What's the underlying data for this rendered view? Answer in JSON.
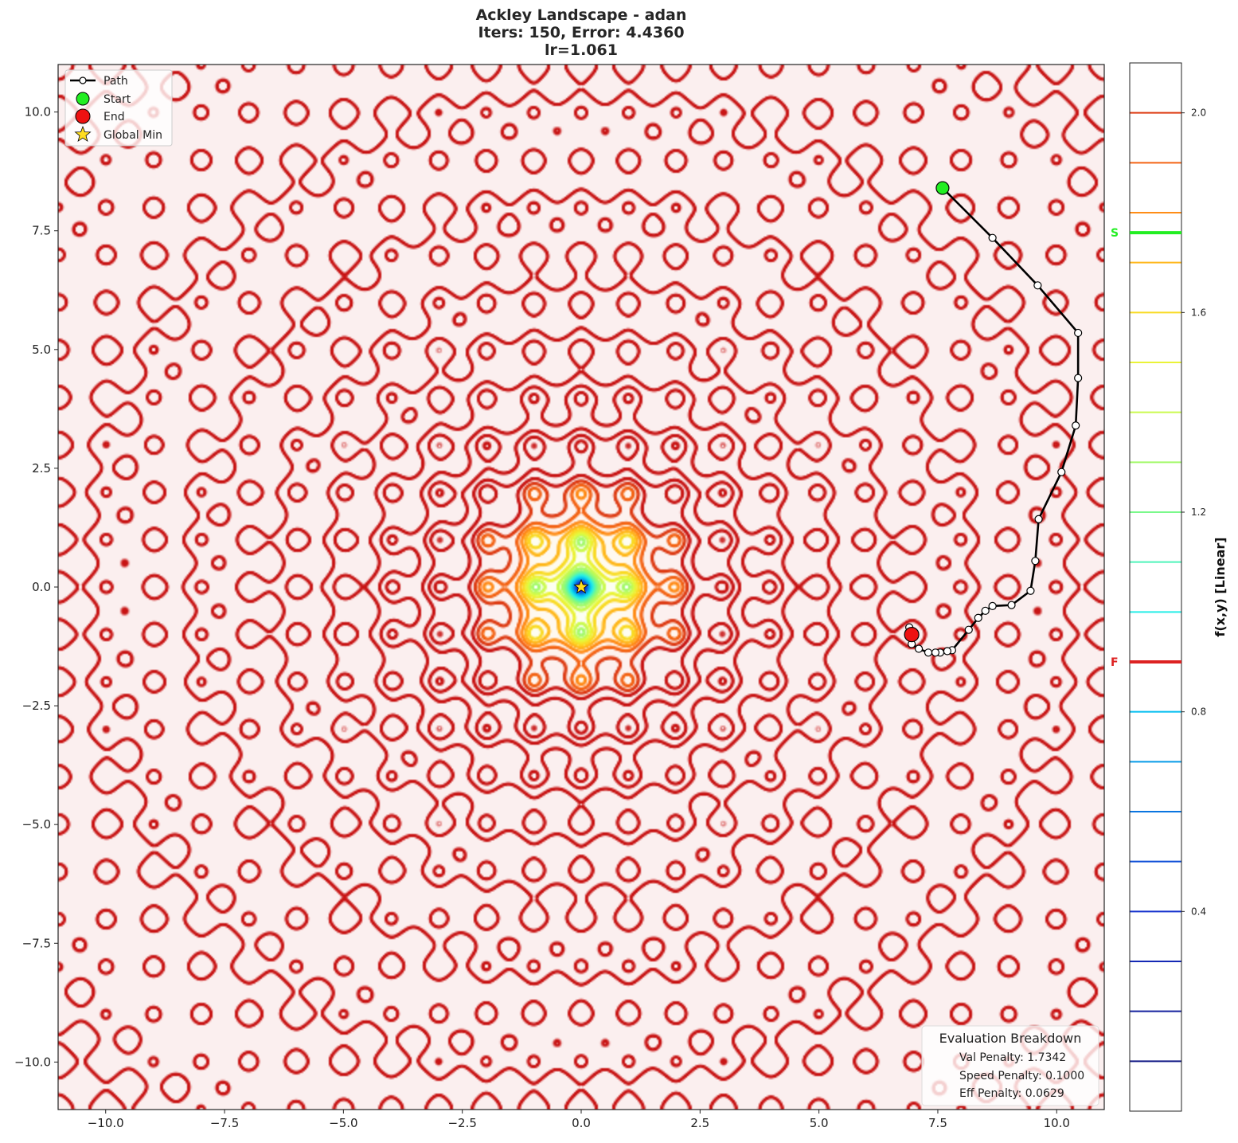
{
  "chart_data": {
    "type": "contour",
    "title_lines": [
      "Ackley Landscape - adan",
      "Iters: 150, Error: 4.4360",
      "lr=1.061"
    ],
    "function": "ackley",
    "xlim": [
      -11,
      11
    ],
    "ylim": [
      -11,
      11
    ],
    "x_ticks": [
      -10,
      -7.5,
      -5,
      -2.5,
      0,
      2.5,
      5,
      7.5,
      10
    ],
    "y_ticks": [
      -10,
      -7.5,
      -5,
      -2.5,
      0,
      2.5,
      5,
      7.5,
      10
    ],
    "x_tick_labels": [
      "−10.0",
      "−7.5",
      "−5.0",
      "−2.5",
      "0.0",
      "2.5",
      "5.0",
      "7.5",
      "10.0"
    ],
    "y_tick_labels": [
      "−10.0",
      "−7.5",
      "−5.0",
      "−2.5",
      "0.0",
      "2.5",
      "5.0",
      "7.5",
      "10.0"
    ],
    "path": [
      [
        7.6,
        8.4
      ],
      [
        8.65,
        7.35
      ],
      [
        9.6,
        6.35
      ],
      [
        10.45,
        5.35
      ],
      [
        10.45,
        4.4
      ],
      [
        10.4,
        3.4
      ],
      [
        10.1,
        2.42
      ],
      [
        9.62,
        1.43
      ],
      [
        9.55,
        0.55
      ],
      [
        9.45,
        -0.08
      ],
      [
        9.05,
        -0.38
      ],
      [
        8.65,
        -0.4
      ],
      [
        8.5,
        -0.5
      ],
      [
        8.35,
        -0.65
      ],
      [
        8.15,
        -0.9
      ],
      [
        7.8,
        -1.33
      ],
      [
        7.7,
        -1.35
      ],
      [
        7.55,
        -1.38
      ],
      [
        7.45,
        -1.38
      ],
      [
        7.3,
        -1.38
      ],
      [
        7.1,
        -1.3
      ],
      [
        6.95,
        -1.2
      ],
      [
        6.9,
        -0.85
      ],
      [
        6.95,
        -0.98
      ]
    ],
    "start": [
      7.6,
      8.4
    ],
    "end": [
      6.95,
      -1.0
    ],
    "global_min": [
      0,
      0
    ],
    "legend": {
      "placement": "upper-left",
      "entries": [
        "Path",
        "Start",
        "End",
        "Global Min"
      ]
    },
    "colorbar": {
      "label": "f(x,y) [Linear]",
      "range": [
        0,
        2.1
      ],
      "ticks": [
        0.4,
        0.8,
        1.2,
        1.6,
        2.0
      ],
      "tick_labels": [
        "0.4",
        "0.8",
        "1.2",
        "1.6",
        "2.0"
      ],
      "levels": [
        0.1,
        0.2,
        0.3,
        0.4,
        0.5,
        0.6,
        0.7,
        0.8,
        0.9,
        1.0,
        1.1,
        1.2,
        1.3,
        1.4,
        1.5,
        1.6,
        1.7,
        1.8,
        1.9,
        2.0
      ],
      "start_marker": {
        "label": "S",
        "value": 1.76,
        "color": "#22ee22"
      },
      "end_marker": {
        "label": "F",
        "value": 0.9,
        "color": "#dd2222"
      }
    },
    "evaluation_breakdown": {
      "title": "Evaluation Breakdown",
      "lines": [
        "Val Penalty: 1.7342",
        "Speed Penalty: 0.1000",
        "Eff Penalty: 0.0629"
      ]
    }
  },
  "colors": {
    "path": "#000000",
    "start": "#22ee22",
    "end": "#ee1111",
    "global_min": "#ffdd22"
  }
}
